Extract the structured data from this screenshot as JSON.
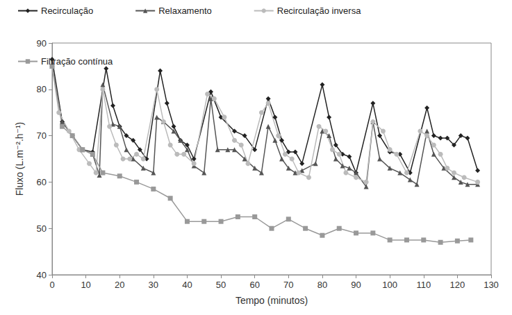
{
  "chart_data": {
    "type": "line",
    "x_label": "Tempo (minutos)",
    "y_label": "Fluxo (L.m⁻².h⁻¹)",
    "xlim": [
      0,
      130
    ],
    "xticks": [
      0,
      10,
      20,
      30,
      40,
      50,
      60,
      70,
      80,
      90,
      100,
      110,
      120,
      130
    ],
    "ylim": [
      40,
      90
    ],
    "yticks": [
      40,
      50,
      60,
      70,
      80,
      90
    ],
    "grid": false,
    "legend": "top",
    "series": [
      {
        "name": "Recirculação",
        "color": "#222222",
        "marker": "diamond",
        "line_style": "solid",
        "x": [
          0,
          3,
          6,
          9,
          12,
          16,
          18,
          20,
          22,
          24,
          26,
          28,
          32,
          34,
          36,
          38,
          40,
          42,
          47,
          50,
          54,
          57,
          60,
          64,
          66,
          68,
          70,
          72,
          74,
          80,
          82,
          84,
          86,
          88,
          90,
          95,
          97,
          100,
          103,
          106,
          111,
          113,
          115,
          117,
          119,
          121,
          123,
          126
        ],
        "values": [
          86.5,
          73,
          70,
          67,
          66.5,
          84.5,
          76.5,
          72,
          70,
          69,
          67,
          65,
          84,
          77,
          72,
          69,
          68,
          65,
          79.5,
          74,
          71,
          70,
          67,
          78,
          74,
          69,
          66.5,
          66.5,
          64,
          81,
          74,
          68,
          66,
          65.5,
          62,
          77,
          70,
          66.5,
          66,
          62,
          76,
          70,
          69.5,
          69.5,
          68,
          70,
          69.5,
          62.5
        ]
      },
      {
        "name": "Relaxamento",
        "color": "#555555",
        "marker": "triangle",
        "line_style": "solid",
        "x": [
          0,
          3,
          6,
          9,
          12,
          14,
          15,
          18,
          20,
          22,
          24,
          27,
          30,
          31,
          33,
          36,
          38,
          40,
          42,
          45,
          47,
          49,
          52,
          54,
          57,
          60,
          62,
          64,
          66,
          68,
          70,
          72,
          74,
          78,
          80,
          82,
          84,
          86,
          88,
          90,
          93,
          95,
          97,
          100,
          103,
          106,
          108,
          111,
          113,
          116,
          119,
          121,
          123,
          126
        ],
        "values": [
          85,
          73,
          70,
          67,
          66,
          61.5,
          81,
          72.5,
          72,
          67,
          65,
          63,
          62,
          74,
          73,
          71,
          69,
          67,
          63.5,
          62,
          78,
          67,
          67,
          67,
          65,
          63,
          62,
          72,
          69,
          65,
          63,
          62,
          62.5,
          64,
          71,
          70,
          65,
          63.5,
          63,
          62,
          59,
          73,
          65,
          63,
          62,
          60.5,
          59.5,
          71,
          66,
          63,
          61,
          60,
          59.5,
          59.5
        ]
      },
      {
        "name": "Recirculação inversa",
        "color": "#bbbbbb",
        "marker": "circle",
        "line_style": "solid",
        "x": [
          0,
          2,
          5,
          8,
          11,
          13,
          15,
          17,
          19,
          21,
          23,
          25,
          27,
          31,
          33,
          35,
          37,
          39,
          42,
          46,
          48,
          51,
          54,
          56,
          58,
          62,
          64,
          67,
          69,
          71,
          73,
          76,
          79,
          81,
          83,
          85,
          87,
          90,
          93,
          95,
          98,
          100,
          102,
          105,
          109,
          111,
          113,
          115,
          117,
          119,
          122,
          126
        ],
        "values": [
          85,
          75,
          71,
          67,
          64,
          62,
          80,
          72,
          68,
          65,
          65,
          66,
          65,
          80,
          73,
          68,
          66,
          66,
          64,
          79,
          78,
          74,
          69,
          68,
          64,
          75,
          77,
          70,
          66,
          65,
          62,
          61,
          72,
          71,
          67,
          66,
          62,
          61,
          60,
          73,
          71,
          67,
          66,
          62,
          71,
          70,
          68,
          66,
          63,
          62,
          61,
          60
        ]
      },
      {
        "name": "Filtração contínua",
        "color": "#999999",
        "marker": "square",
        "line_style": "solid",
        "x": [
          0,
          3,
          6,
          9,
          12,
          15,
          20,
          25,
          30,
          35,
          40,
          45,
          50,
          55,
          60,
          65,
          70,
          75,
          80,
          85,
          90,
          95,
          100,
          105,
          110,
          115,
          120,
          124
        ],
        "values": [
          85,
          72,
          70,
          67,
          66,
          62,
          61.3,
          60,
          58.5,
          56.5,
          51.5,
          51.5,
          51.5,
          52.5,
          52.5,
          50,
          52,
          50,
          48.5,
          50,
          49,
          49,
          47.5,
          47.5,
          47.5,
          47,
          47.3,
          47.5
        ]
      }
    ]
  }
}
